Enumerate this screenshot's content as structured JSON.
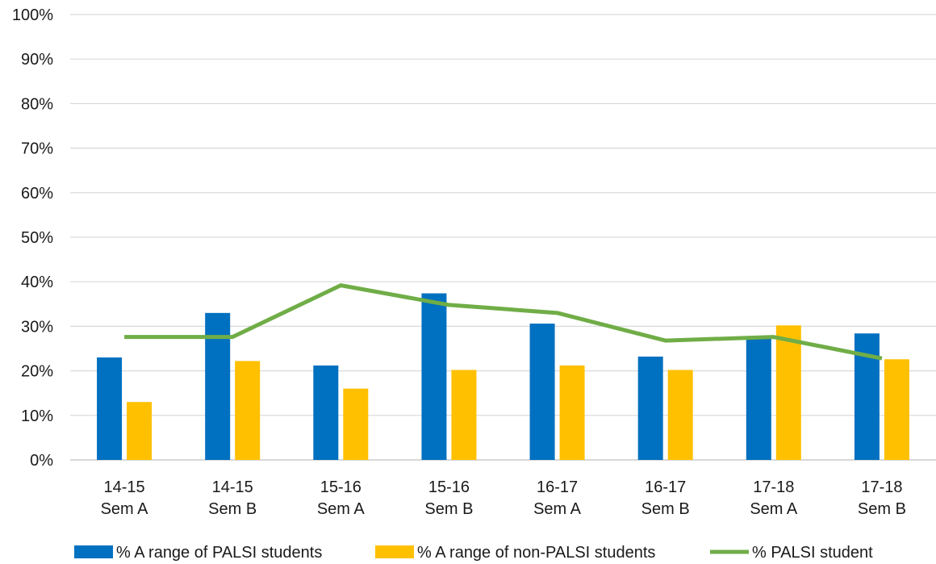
{
  "chart_data": {
    "type": "bar",
    "categories": [
      [
        "14-15",
        "Sem A"
      ],
      [
        "14-15",
        "Sem B"
      ],
      [
        "15-16",
        "Sem A"
      ],
      [
        "15-16",
        "Sem B"
      ],
      [
        "16-17",
        "Sem A"
      ],
      [
        "16-17",
        "Sem B"
      ],
      [
        "17-18",
        "Sem A"
      ],
      [
        "17-18",
        "Sem B"
      ]
    ],
    "series": [
      {
        "name": "% A range of PALSI students",
        "kind": "bar",
        "color": "#0070c0",
        "values": [
          23,
          33,
          21.2,
          37.4,
          30.6,
          23.2,
          27.2,
          28.4
        ]
      },
      {
        "name": "% A range of non-PALSI students",
        "kind": "bar",
        "color": "#ffc000",
        "values": [
          13,
          22.2,
          16,
          20.2,
          21.2,
          20.2,
          30.2,
          22.6
        ]
      },
      {
        "name": "% PALSI student",
        "kind": "line",
        "color": "#70ad47",
        "values": [
          27.6,
          27.6,
          39.2,
          34.8,
          33,
          26.8,
          27.6,
          22.8
        ]
      }
    ],
    "ylim": [
      0,
      100
    ],
    "yticks": [
      "0%",
      "10%",
      "20%",
      "30%",
      "40%",
      "50%",
      "60%",
      "70%",
      "80%",
      "90%",
      "100%"
    ],
    "grid": true,
    "legend_position": "bottom"
  }
}
